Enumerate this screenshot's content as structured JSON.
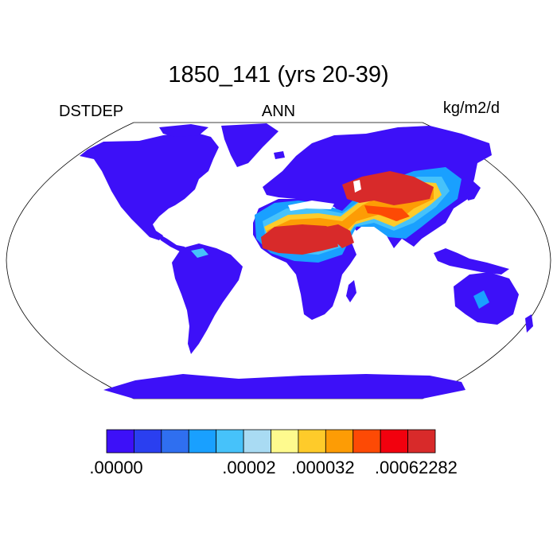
{
  "title": "1850_141 (yrs 20-39)",
  "left_label": "DSTDEP",
  "center_label": "ANN",
  "right_label": "kg/m2/d",
  "colorbar": {
    "colors": [
      "#3d10f8",
      "#2a3ff0",
      "#2f6ff0",
      "#19a0ff",
      "#46c2fa",
      "#a9dbf3",
      "#fefa8e",
      "#fecb2a",
      "#fd9c05",
      "#fd4a05",
      "#f2010e",
      "#d82a2a"
    ],
    "tick_labels": [
      ".00000",
      ".00002",
      ".000032",
      ".00062282"
    ]
  },
  "map": {
    "projection": "Robinson",
    "land_base_color": "#3d10f8",
    "ocean_color": "#ffffff"
  }
}
